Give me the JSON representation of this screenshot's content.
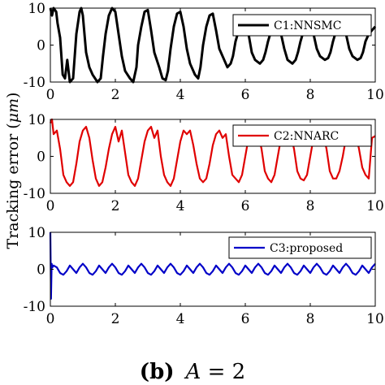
{
  "figure": {
    "ylabel": "Tracking error (",
    "ylabel_unit": "μm",
    "ylabel_close": ")",
    "caption_label": "(b)",
    "caption_var": "A",
    "caption_rest": " = 2"
  },
  "chart_data": [
    {
      "type": "line",
      "xlim": [
        0,
        10
      ],
      "ylim": [
        -10,
        10
      ],
      "xticks": [
        0,
        2,
        4,
        6,
        8,
        10
      ],
      "yticks": [
        -10,
        0,
        10
      ],
      "grid": false,
      "legend_position": "top-right",
      "series": [
        {
          "name": "C1:NNSMC",
          "color": "#000000",
          "x": [
            0,
            0.05,
            0.1,
            0.18,
            0.22,
            0.3,
            0.38,
            0.45,
            0.52,
            0.6,
            0.7,
            0.8,
            0.9,
            0.95,
            1.0,
            1.1,
            1.2,
            1.3,
            1.45,
            1.55,
            1.62,
            1.7,
            1.8,
            1.9,
            2.0,
            2.1,
            2.2,
            2.3,
            2.45,
            2.55,
            2.65,
            2.7,
            2.8,
            2.9,
            3.0,
            3.1,
            3.2,
            3.35,
            3.45,
            3.55,
            3.62,
            3.7,
            3.8,
            3.9,
            4.0,
            4.1,
            4.2,
            4.3,
            4.45,
            4.55,
            4.62,
            4.7,
            4.8,
            4.9,
            5.0,
            5.1,
            5.2,
            5.35,
            5.45,
            5.55,
            5.62,
            5.7,
            5.8,
            5.9,
            6.0,
            6.1,
            6.2,
            6.3,
            6.45,
            6.55,
            6.62,
            6.7,
            6.8,
            6.9,
            7.0,
            7.1,
            7.2,
            7.3,
            7.45,
            7.55,
            7.62,
            7.7,
            7.8,
            7.9,
            8.0,
            8.1,
            8.2,
            8.3,
            8.45,
            8.55,
            8.62,
            8.7,
            8.8,
            8.9,
            9.0,
            9.1,
            9.2,
            9.3,
            9.45,
            9.55,
            9.62,
            9.7,
            9.8,
            9.9,
            10.0
          ],
          "values": [
            10,
            8,
            10,
            9,
            6,
            2,
            -8,
            -9,
            -4,
            -10,
            -9,
            3,
            9,
            10,
            8,
            -2,
            -6,
            -8,
            -10,
            -9,
            -3,
            3,
            8,
            10,
            9,
            3,
            -3,
            -7,
            -9,
            -10,
            -6,
            0,
            5,
            9,
            9.5,
            4,
            -2,
            -6,
            -9,
            -9.5,
            -7,
            -1,
            5,
            8.5,
            9,
            5,
            -1,
            -5,
            -8,
            -9,
            -6,
            0,
            5,
            8,
            8.5,
            4,
            -1,
            -4,
            -6,
            -5,
            -3,
            1,
            4,
            7,
            7.5,
            3,
            -2,
            -4,
            -5,
            -4,
            -2,
            1,
            4,
            6,
            7,
            3,
            -1,
            -4,
            -5,
            -4,
            -2,
            1,
            4,
            6,
            6.5,
            3,
            -1,
            -3,
            -4,
            -3.5,
            -2,
            1,
            4,
            6,
            6.5,
            3,
            -1,
            -3,
            -4,
            -3.5,
            -2,
            1,
            3,
            4,
            5
          ]
        }
      ]
    },
    {
      "type": "line",
      "xlim": [
        0,
        10
      ],
      "ylim": [
        -10,
        10
      ],
      "xticks": [
        0,
        2,
        4,
        6,
        8,
        10
      ],
      "yticks": [
        -10,
        0,
        10
      ],
      "grid": false,
      "legend_position": "top-right",
      "series": [
        {
          "name": "C2:NNARC",
          "color": "#e00000",
          "x": [
            0,
            0.05,
            0.1,
            0.2,
            0.3,
            0.4,
            0.5,
            0.6,
            0.7,
            0.8,
            0.9,
            1.0,
            1.1,
            1.2,
            1.3,
            1.4,
            1.5,
            1.6,
            1.7,
            1.8,
            1.9,
            2.0,
            2.1,
            2.2,
            2.3,
            2.4,
            2.5,
            2.6,
            2.7,
            2.8,
            2.9,
            3.0,
            3.1,
            3.2,
            3.3,
            3.4,
            3.5,
            3.6,
            3.7,
            3.8,
            3.9,
            4.0,
            4.1,
            4.2,
            4.3,
            4.4,
            4.5,
            4.6,
            4.7,
            4.8,
            4.9,
            5.0,
            5.1,
            5.2,
            5.3,
            5.4,
            5.5,
            5.6,
            5.7,
            5.8,
            5.9,
            6.0,
            6.1,
            6.2,
            6.3,
            6.4,
            6.5,
            6.6,
            6.7,
            6.8,
            6.9,
            7.0,
            7.1,
            7.2,
            7.3,
            7.4,
            7.5,
            7.6,
            7.7,
            7.8,
            7.9,
            8.0,
            8.1,
            8.2,
            8.3,
            8.4,
            8.5,
            8.6,
            8.7,
            8.8,
            8.9,
            9.0,
            9.1,
            9.2,
            9.3,
            9.4,
            9.5,
            9.6,
            9.7,
            9.8,
            9.9,
            10.0
          ],
          "values": [
            9,
            10,
            6,
            7,
            2,
            -5,
            -7,
            -8,
            -7,
            -2,
            4,
            7,
            8,
            5,
            -1,
            -6,
            -8,
            -7,
            -3,
            2,
            6,
            8,
            4,
            7,
            1,
            -5,
            -7,
            -8,
            -6,
            -1,
            4,
            7,
            8,
            5,
            7,
            0,
            -5,
            -7,
            -8,
            -6,
            -1,
            4,
            7,
            6,
            7,
            3,
            -2,
            -6,
            -7,
            -6,
            -2,
            3,
            6,
            7,
            5,
            6,
            0,
            -5,
            -6,
            -7,
            -5,
            0,
            5,
            6,
            4,
            6,
            2,
            -4,
            -6,
            -7,
            -5,
            0,
            5,
            6,
            4,
            6,
            2,
            -4,
            -6,
            -6.5,
            -5,
            0,
            5,
            6,
            4,
            6,
            2,
            -4,
            -6,
            -6,
            -4,
            0,
            5,
            6,
            4,
            6,
            2,
            -3,
            -5,
            -6,
            5,
            5.5
          ]
        }
      ]
    },
    {
      "type": "line",
      "xlim": [
        0,
        10
      ],
      "ylim": [
        -10,
        10
      ],
      "xticks": [
        0,
        2,
        4,
        6,
        8,
        10
      ],
      "yticks": [
        -10,
        0,
        10
      ],
      "grid": false,
      "legend_position": "top-right",
      "series": [
        {
          "name": "C3:proposed",
          "color": "#0000c8",
          "x": [
            0,
            0.02,
            0.04,
            0.06,
            0.1,
            0.2,
            0.3,
            0.4,
            0.5,
            0.6,
            0.7,
            0.8,
            0.9,
            1.0,
            1.1,
            1.2,
            1.3,
            1.4,
            1.5,
            1.6,
            1.7,
            1.8,
            1.9,
            2.0,
            2.1,
            2.2,
            2.3,
            2.4,
            2.5,
            2.6,
            2.7,
            2.8,
            2.9,
            3.0,
            3.1,
            3.2,
            3.3,
            3.4,
            3.5,
            3.6,
            3.7,
            3.8,
            3.9,
            4.0,
            4.1,
            4.2,
            4.3,
            4.4,
            4.5,
            4.6,
            4.7,
            4.8,
            4.9,
            5.0,
            5.1,
            5.2,
            5.3,
            5.4,
            5.5,
            5.6,
            5.7,
            5.8,
            5.9,
            6.0,
            6.1,
            6.2,
            6.3,
            6.4,
            6.5,
            6.6,
            6.7,
            6.8,
            6.9,
            7.0,
            7.1,
            7.2,
            7.3,
            7.4,
            7.5,
            7.6,
            7.7,
            7.8,
            7.9,
            8.0,
            8.1,
            8.2,
            8.3,
            8.4,
            8.5,
            8.6,
            8.7,
            8.8,
            8.9,
            9.0,
            9.1,
            9.2,
            9.3,
            9.4,
            9.5,
            9.6,
            9.7,
            9.8,
            9.9,
            10.0
          ],
          "values": [
            10,
            -8,
            1.5,
            0.5,
            1,
            0.5,
            -1,
            -1.5,
            -0.5,
            1,
            0,
            -1,
            0.5,
            1.5,
            0.5,
            -1,
            -1.5,
            -0.5,
            1,
            0,
            -1,
            0.5,
            1.5,
            0.5,
            -1,
            -1.5,
            -0.5,
            1,
            0,
            -1,
            0.5,
            1.5,
            0.5,
            -1,
            -1.5,
            -0.5,
            1,
            0,
            -1,
            0.5,
            1.5,
            0.5,
            -1,
            -1.5,
            -0.5,
            1,
            0,
            -1,
            0.5,
            1.5,
            0.5,
            -1,
            -1.5,
            -0.5,
            1,
            0,
            -1,
            0.5,
            1.5,
            0.5,
            -1,
            -1.5,
            -0.5,
            1,
            0,
            -1,
            0.5,
            1.5,
            0.5,
            -1,
            -1.5,
            -0.5,
            1,
            0,
            -1,
            0.5,
            1.5,
            0.5,
            -1,
            -1.5,
            -0.5,
            1,
            0,
            -1,
            0.5,
            1.5,
            0.5,
            -1,
            -1.5,
            -0.5,
            1,
            0,
            -1,
            0.5,
            1.5,
            0.5,
            -1,
            -1.5,
            -0.5,
            1,
            0,
            -1,
            0.5,
            1.5
          ]
        }
      ]
    }
  ]
}
